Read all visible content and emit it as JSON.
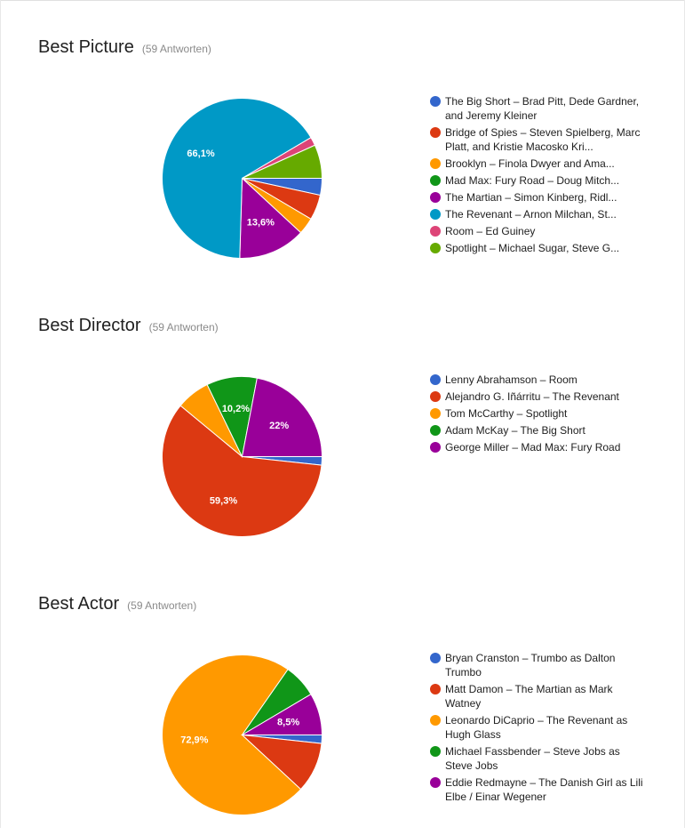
{
  "colors": {
    "blue": "#3366cc",
    "red": "#dc3912",
    "orange": "#ff9900",
    "green": "#109618",
    "purple": "#990099",
    "teal": "#0099c6",
    "pink": "#dd4477",
    "lime": "#66aa00"
  },
  "questions": [
    {
      "title": "Best Picture",
      "count": "(59 Antworten)",
      "legend": [
        {
          "label": "The Big Short – Brad Pitt, Dede Gardner, and Jeremy Kleiner",
          "color": "#3366cc"
        },
        {
          "label": "Bridge of Spies – Steven Spielberg, Marc Platt, and Kristie Macosko Kri...",
          "color": "#dc3912"
        },
        {
          "label": "Brooklyn – Finola Dwyer and Ama...",
          "color": "#ff9900"
        },
        {
          "label": "Mad Max: Fury Road – Doug Mitch...",
          "color": "#109618"
        },
        {
          "label": "The Martian – Simon Kinberg, Ridl...",
          "color": "#990099"
        },
        {
          "label": "The Revenant – Arnon Milchan, St...",
          "color": "#0099c6"
        },
        {
          "label": "Room – Ed Guiney",
          "color": "#dd4477"
        },
        {
          "label": "Spotlight – Michael Sugar, Steve G...",
          "color": "#66aa00"
        }
      ]
    },
    {
      "title": "Best Director",
      "count": "(59 Antworten)",
      "legend": [
        {
          "label": "Lenny Abrahamson – Room",
          "color": "#3366cc"
        },
        {
          "label": "Alejandro G. Iñárritu – The Revenant",
          "color": "#dc3912"
        },
        {
          "label": "Tom McCarthy – Spotlight",
          "color": "#ff9900"
        },
        {
          "label": "Adam McKay – The Big Short",
          "color": "#109618"
        },
        {
          "label": "George Miller – Mad Max: Fury Road",
          "color": "#990099"
        }
      ]
    },
    {
      "title": "Best Actor",
      "count": "(59 Antworten)",
      "legend": [
        {
          "label": "Bryan Cranston – Trumbo as Dalton Trumbo",
          "color": "#3366cc"
        },
        {
          "label": "Matt Damon – The Martian as Mark Watney",
          "color": "#dc3912"
        },
        {
          "label": "Leonardo DiCaprio – The Revenant as Hugh Glass",
          "color": "#ff9900"
        },
        {
          "label": "Michael Fassbender – Steve Jobs as Steve Jobs",
          "color": "#109618"
        },
        {
          "label": "Eddie Redmayne – The Danish Girl as Lili Elbe / Einar Wegener",
          "color": "#990099"
        }
      ]
    }
  ],
  "chart_data": [
    {
      "type": "pie",
      "title": "Best Picture",
      "categories": [
        "The Big Short – Brad Pitt, Dede Gardner, and Jeremy Kleiner",
        "Bridge of Spies – Steven Spielberg, Marc Platt, and Kristie Macosko Kri...",
        "Brooklyn – Finola Dwyer and Ama...",
        "Mad Max: Fury Road – Doug Mitch...",
        "The Martian – Simon Kinberg, Ridl...",
        "The Revenant – Arnon Milchan, St...",
        "Room – Ed Guiney",
        "Spotlight – Michael Sugar, Steve G..."
      ],
      "values": [
        3.4,
        5.1,
        3.4,
        0,
        13.6,
        66.1,
        1.7,
        6.8
      ],
      "data_labels": [
        "",
        "",
        "",
        "",
        "13,6%",
        "66,1%",
        "",
        ""
      ],
      "colors": [
        "#3366cc",
        "#dc3912",
        "#ff9900",
        "#109618",
        "#990099",
        "#0099c6",
        "#dd4477",
        "#66aa00"
      ],
      "legend": "right"
    },
    {
      "type": "pie",
      "title": "Best Director",
      "categories": [
        "Lenny Abrahamson – Room",
        "Alejandro G. Iñárritu – The Revenant",
        "Tom McCarthy – Spotlight",
        "Adam McKay – The Big Short",
        "George Miller – Mad Max: Fury Road"
      ],
      "values": [
        1.7,
        59.3,
        6.8,
        10.2,
        22
      ],
      "data_labels": [
        "",
        "59,3%",
        "",
        "10,2%",
        "22%"
      ],
      "colors": [
        "#3366cc",
        "#dc3912",
        "#ff9900",
        "#109618",
        "#990099"
      ],
      "legend": "right"
    },
    {
      "type": "pie",
      "title": "Best Actor",
      "categories": [
        "Bryan Cranston – Trumbo as Dalton Trumbo",
        "Matt Damon – The Martian as Mark Watney",
        "Leonardo DiCaprio – The Revenant as Hugh Glass",
        "Michael Fassbender – Steve Jobs as Steve Jobs",
        "Eddie Redmayne – The Danish Girl as Lili Elbe / Einar Wegener"
      ],
      "values": [
        1.7,
        10.2,
        72.9,
        6.8,
        8.5
      ],
      "data_labels": [
        "",
        "",
        "72,9%",
        "",
        "8,5%"
      ],
      "colors": [
        "#3366cc",
        "#dc3912",
        "#ff9900",
        "#109618",
        "#990099"
      ],
      "legend": "right"
    }
  ]
}
